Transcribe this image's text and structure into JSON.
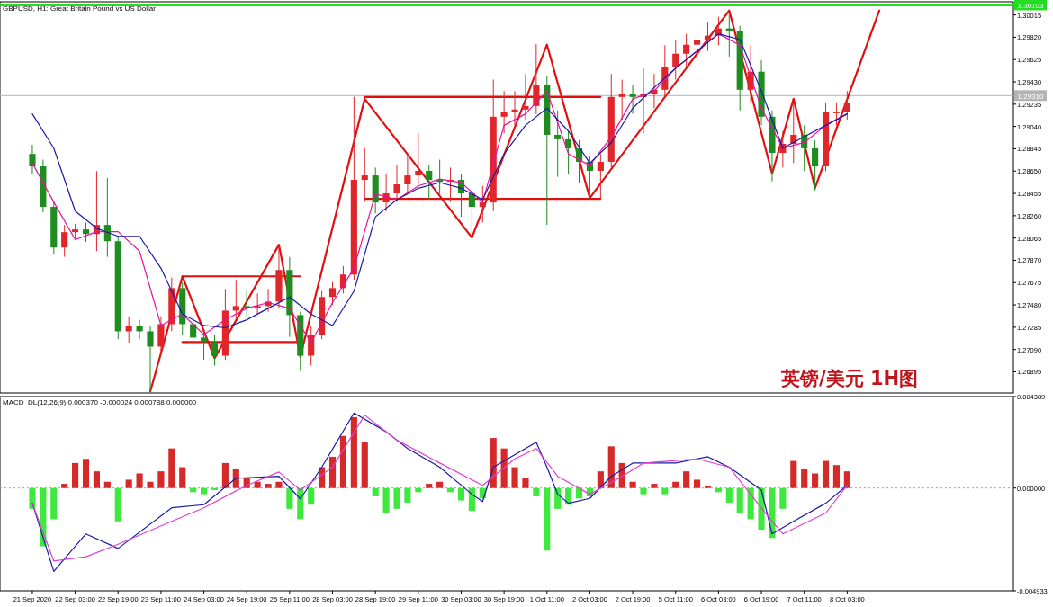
{
  "chart_data": [
    {
      "type": "candlestick",
      "title": "英镑/美元 1H图",
      "subtitle": "GBPUSD, H1:  Great Britain Pound vs US Dollar",
      "tick_labels": "y",
      "categories": [
        null,
        null,
        null,
        null,
        null,
        null,
        null,
        null,
        null,
        null,
        null,
        null,
        null,
        null,
        null,
        null,
        null,
        null,
        null,
        null,
        null,
        null,
        null,
        null,
        null,
        null,
        null,
        null,
        null,
        null,
        null,
        null,
        null,
        null,
        null,
        null,
        null,
        null,
        null,
        null,
        null,
        null,
        null,
        null,
        null,
        null,
        null,
        null,
        null,
        null,
        null,
        null,
        null,
        null,
        null,
        null,
        null,
        null,
        null,
        null,
        null,
        null,
        null,
        null,
        null,
        null,
        null,
        null,
        null,
        null,
        null,
        null,
        null,
        null,
        null,
        null,
        null,
        null,
        null,
        null,
        null,
        null,
        null,
        null,
        null,
        null,
        null,
        null,
        null,
        null,
        null,
        null
      ],
      "ylim": [
        1.2671,
        1.3013
      ],
      "yticks": [
        {
          "value": 1.30015,
          "label": "1.30015"
        },
        {
          "value": 1.2982,
          "label": "1.29820"
        },
        {
          "value": 1.29625,
          "label": "1.29625"
        },
        {
          "value": 1.2943,
          "label": "1.29430"
        },
        {
          "value": 1.29235,
          "label": "1.29235"
        },
        {
          "value": 1.2904,
          "label": "1.29040"
        },
        {
          "value": 1.28845,
          "label": "1.28845"
        },
        {
          "value": 1.2865,
          "label": "1.28650"
        },
        {
          "value": 1.28455,
          "label": "1.28455"
        },
        {
          "value": 1.2826,
          "label": "1.28260"
        },
        {
          "value": 1.28065,
          "label": "1.28065"
        },
        {
          "value": 1.2787,
          "label": "1.27870"
        },
        {
          "value": 1.27675,
          "label": "1.27675"
        },
        {
          "value": 1.2748,
          "label": "1.27480"
        },
        {
          "value": 1.27285,
          "label": "1.27285"
        },
        {
          "value": 1.2709,
          "label": "1.27090"
        },
        {
          "value": 1.26895,
          "label": "1.26895"
        }
      ],
      "ref_lines": [
        {
          "axis": "y",
          "value": 1.30103,
          "label": "1.30103",
          "color": "#22dd22"
        },
        {
          "axis": "y",
          "value": 1.2931,
          "label": "1.29310",
          "color": "#b4b4b4"
        }
      ],
      "ohlc": [
        [
          1.288,
          1.2888,
          1.2862,
          1.28691
        ],
        [
          1.28691,
          1.2875,
          1.2829,
          1.28337
        ],
        [
          1.28337,
          1.2838,
          1.2792,
          1.27982
        ],
        [
          1.27982,
          1.2818,
          1.279,
          1.28116
        ],
        [
          1.28116,
          1.2819,
          1.2806,
          1.2814
        ],
        [
          1.2814,
          1.282,
          1.2803,
          1.281
        ],
        [
          1.281,
          1.2865,
          1.2795,
          1.28179
        ],
        [
          1.28179,
          1.2859,
          1.279,
          1.28037
        ],
        [
          1.28037,
          1.2808,
          1.2718,
          1.27249
        ],
        [
          1.27249,
          1.2738,
          1.2715,
          1.27296
        ],
        [
          1.27296,
          1.2735,
          1.2718,
          1.27249
        ],
        [
          1.27249,
          1.273,
          1.2672,
          1.27115
        ],
        [
          1.27115,
          1.2738,
          1.2705,
          1.27312
        ],
        [
          1.27312,
          1.2772,
          1.2725,
          1.27627
        ],
        [
          1.27627,
          1.2768,
          1.2722,
          1.27312
        ],
        [
          1.27312,
          1.2738,
          1.2712,
          1.27194
        ],
        [
          1.27194,
          1.2725,
          1.27,
          1.27155
        ],
        [
          1.27155,
          1.2722,
          1.2695,
          1.27036
        ],
        [
          1.27036,
          1.2762,
          1.27,
          1.2743
        ],
        [
          1.2743,
          1.277,
          1.2735,
          1.2747
        ],
        [
          1.2747,
          1.2762,
          1.2738,
          1.27454
        ],
        [
          1.27454,
          1.2758,
          1.274,
          1.2747
        ],
        [
          1.2747,
          1.2762,
          1.2742,
          1.27509
        ],
        [
          1.27509,
          1.28,
          1.2745,
          1.27785
        ],
        [
          1.27785,
          1.279,
          1.272,
          1.27391
        ],
        [
          1.27391,
          1.2742,
          1.269,
          1.27036
        ],
        [
          1.27036,
          1.273,
          1.2695,
          1.27218
        ],
        [
          1.27218,
          1.276,
          1.2718,
          1.27549
        ],
        [
          1.27549,
          1.2768,
          1.2748,
          1.27627
        ],
        [
          1.27627,
          1.2782,
          1.2758,
          1.27746
        ],
        [
          1.27746,
          1.293,
          1.277,
          1.28573
        ],
        [
          1.28573,
          1.2885,
          1.2838,
          1.28612
        ],
        [
          1.28612,
          1.2868,
          1.2828,
          1.28376
        ],
        [
          1.28376,
          1.2862,
          1.283,
          1.28455
        ],
        [
          1.28455,
          1.287,
          1.2838,
          1.28534
        ],
        [
          1.28534,
          1.288,
          1.2845,
          1.28612
        ],
        [
          1.28612,
          1.2898,
          1.2852,
          1.28652
        ],
        [
          1.28652,
          1.287,
          1.284,
          1.28573
        ],
        [
          1.28573,
          1.2875,
          1.2845,
          1.28557
        ],
        [
          1.28557,
          1.2868,
          1.2838,
          1.28573
        ],
        [
          1.28573,
          1.2862,
          1.2825,
          1.28455
        ],
        [
          1.28455,
          1.285,
          1.2808,
          1.28337
        ],
        [
          1.28337,
          1.2852,
          1.282,
          1.28376
        ],
        [
          1.28376,
          1.2945,
          1.283,
          1.29125
        ],
        [
          1.29125,
          1.2935,
          1.2898,
          1.29164
        ],
        [
          1.29164,
          1.2935,
          1.2905,
          1.29188
        ],
        [
          1.29188,
          1.295,
          1.291,
          1.29219
        ],
        [
          1.29219,
          1.2976,
          1.2915,
          1.294
        ],
        [
          1.294,
          1.2948,
          1.2818,
          1.28967
        ],
        [
          1.28967,
          1.2918,
          1.286,
          1.28928
        ],
        [
          1.28928,
          1.29,
          1.2862,
          1.28849
        ],
        [
          1.28849,
          1.2892,
          1.2855,
          1.28731
        ],
        [
          1.28731,
          1.2878,
          1.2842,
          1.28652
        ],
        [
          1.28652,
          1.288,
          1.284,
          1.28731
        ],
        [
          1.28731,
          1.295,
          1.2868,
          1.29298
        ],
        [
          1.29298,
          1.2945,
          1.291,
          1.29322
        ],
        [
          1.29322,
          1.294,
          1.2915,
          1.29298
        ],
        [
          1.29298,
          1.2955,
          1.2898,
          1.29322
        ],
        [
          1.29322,
          1.295,
          1.292,
          1.29361
        ],
        [
          1.29361,
          1.2975,
          1.293,
          1.29558
        ],
        [
          1.29558,
          1.298,
          1.2945,
          1.29676
        ],
        [
          1.29676,
          1.2985,
          1.2955,
          1.29755
        ],
        [
          1.29755,
          1.299,
          1.2962,
          1.29794
        ],
        [
          1.29794,
          1.2995,
          1.297,
          1.29834
        ],
        [
          1.29834,
          1.3,
          1.2975,
          1.29897
        ],
        [
          1.29897,
          1.3005,
          1.2965,
          1.29873
        ],
        [
          1.29873,
          1.2992,
          1.2918,
          1.29361
        ],
        [
          1.29361,
          1.2975,
          1.2925,
          1.29519
        ],
        [
          1.29519,
          1.2962,
          1.2905,
          1.29125
        ],
        [
          1.29125,
          1.2918,
          1.2856,
          1.28809
        ],
        [
          1.28809,
          1.29,
          1.2868,
          1.28888
        ],
        [
          1.28888,
          1.2925,
          1.2872,
          1.28967
        ],
        [
          1.28967,
          1.2905,
          1.2865,
          1.28849
        ],
        [
          1.28849,
          1.2892,
          1.2848,
          1.28691
        ],
        [
          1.28691,
          1.2925,
          1.2865,
          1.29164
        ],
        [
          1.29164,
          1.2925,
          1.2905,
          1.29164
        ],
        [
          1.29164,
          1.2935,
          1.291,
          1.29243
        ],
        null,
        null,
        null,
        null,
        null,
        null,
        null,
        null,
        null,
        null,
        null,
        null,
        null,
        null,
        null
      ],
      "colors": [
        "#1e8c1e",
        "#1e8c1e",
        "#1e8c1e",
        "#e0262a",
        "#e0262a",
        "#1e8c1e",
        "#e0262a",
        "#1e8c1e",
        "#1e8c1e",
        "#e0262a",
        "#1e8c1e",
        "#1e8c1e",
        "#e0262a",
        "#e0262a",
        "#1e8c1e",
        "#1e8c1e",
        "#1e8c1e",
        "#1e8c1e",
        "#e0262a",
        "#e0262a",
        "#1e8c1e",
        "#e0262a",
        "#e0262a",
        "#e0262a",
        "#1e8c1e",
        "#1e8c1e",
        "#e0262a",
        "#e0262a",
        "#e0262a",
        "#e0262a",
        "#e0262a",
        "#e0262a",
        "#1e8c1e",
        "#e0262a",
        "#e0262a",
        "#e0262a",
        "#e0262a",
        "#1e8c1e",
        "#1e8c1e",
        "#e0262a",
        "#1e8c1e",
        "#1e8c1e",
        "#e0262a",
        "#e0262a",
        "#e0262a",
        "#e0262a",
        "#e0262a",
        "#e0262a",
        "#1e8c1e",
        "#1e8c1e",
        "#1e8c1e",
        "#1e8c1e",
        "#1e8c1e",
        "#e0262a",
        "#e0262a",
        "#e0262a",
        "#1e8c1e",
        "#e0262a",
        "#e0262a",
        "#e0262a",
        "#e0262a",
        "#e0262a",
        "#e0262a",
        "#e0262a",
        "#e0262a",
        "#1e8c1e",
        "#1e8c1e",
        "#e0262a",
        "#1e8c1e",
        "#1e8c1e",
        "#e0262a",
        "#e0262a",
        "#1e8c1e",
        "#1e8c1e",
        "#e0262a",
        "#e0262a",
        "#e0262a",
        null,
        null,
        null,
        null,
        null,
        null,
        null,
        null,
        null,
        null,
        null,
        null,
        null,
        null,
        null
      ],
      "series": [
        {
          "type": "line",
          "color": "#e8119e",
          "values": [
            1.2872,
            null,
            1.2838,
            null,
            1.2805,
            null,
            1.2812,
            null,
            1.2812,
            null,
            1.2795,
            null,
            1.273,
            null,
            1.274,
            null,
            1.2722,
            null,
            1.2735,
            null,
            1.2745,
            null,
            1.275,
            null,
            1.2745,
            null,
            1.2715,
            null,
            1.275,
            null,
            1.278,
            null,
            1.2845,
            null,
            1.284,
            null,
            1.2852,
            null,
            1.2858,
            null,
            1.2855,
            null,
            1.2838,
            null,
            1.2905,
            null,
            1.2915,
            null,
            1.2935,
            null,
            1.288,
            null,
            1.287,
            null,
            1.2895,
            null,
            1.2928,
            null,
            1.2935,
            null,
            1.2955,
            null,
            1.297,
            null,
            1.2985,
            null,
            1.2975,
            null,
            1.292,
            null,
            1.2885,
            null,
            1.289,
            null,
            1.2905,
            null,
            1.2915,
            null,
            null,
            null,
            null,
            null,
            null,
            null,
            null,
            null,
            null,
            null,
            null,
            null,
            null,
            null
          ]
        },
        {
          "type": "line",
          "color": "#1a1aa8",
          "values": [
            1.2915,
            null,
            1.2885,
            null,
            1.283,
            null,
            1.2815,
            null,
            1.2808,
            null,
            1.2808,
            null,
            1.278,
            null,
            1.274,
            null,
            1.273,
            null,
            1.2728,
            null,
            1.2735,
            null,
            1.2745,
            null,
            1.2755,
            null,
            1.274,
            null,
            1.273,
            null,
            1.276,
            null,
            1.2825,
            null,
            1.284,
            null,
            1.285,
            null,
            1.2855,
            null,
            1.285,
            null,
            1.284,
            null,
            1.288,
            null,
            1.2905,
            null,
            1.292,
            null,
            1.29,
            null,
            1.2872,
            null,
            1.289,
            null,
            1.292,
            null,
            1.2938,
            null,
            1.2955,
            null,
            1.297,
            null,
            1.2985,
            null,
            1.298,
            null,
            1.2935,
            null,
            1.2885,
            null,
            1.2895,
            null,
            1.2905,
            null,
            1.2915,
            null,
            null,
            null,
            null,
            null,
            null,
            null,
            null,
            null,
            null,
            null,
            null,
            null,
            null,
            null
          ]
        },
        {
          "type": "line",
          "color": "#e01010",
          "values": [
            null,
            null,
            null,
            null,
            null,
            null,
            null,
            null,
            null,
            null,
            null,
            null,
            null,
            null,
            1.2773,
            1.2773,
            1.2773,
            1.2773,
            1.2773,
            1.2773,
            1.2773,
            1.2773,
            1.2773,
            1.2773,
            1.2773,
            1.2773,
            null,
            null,
            null,
            null,
            null,
            null,
            null,
            null,
            null,
            null,
            null,
            null,
            null,
            null,
            null,
            null,
            null,
            null,
            null,
            null,
            null,
            null,
            null,
            null,
            null,
            null,
            null,
            null,
            null,
            null,
            null,
            null,
            null,
            null,
            null,
            null,
            null,
            null,
            null,
            null,
            null,
            null,
            null,
            null,
            null,
            null,
            null,
            null,
            null,
            null,
            null,
            null,
            null,
            null,
            null,
            null,
            null,
            null,
            null,
            null,
            null,
            null,
            null,
            null,
            null,
            null
          ]
        },
        {
          "type": "line",
          "color": "#e01010",
          "values": [
            null,
            null,
            null,
            null,
            null,
            null,
            null,
            null,
            null,
            null,
            null,
            null,
            null,
            null,
            1.27155,
            1.27155,
            1.27155,
            1.27155,
            1.27155,
            1.27155,
            1.27155,
            1.27155,
            1.27155,
            1.27155,
            1.27155,
            1.27155,
            null,
            null,
            null,
            null,
            null,
            null,
            null,
            null,
            null,
            null,
            null,
            null,
            null,
            null,
            null,
            null,
            null,
            null,
            null,
            null,
            null,
            null,
            null,
            null,
            null,
            null,
            null,
            null,
            null,
            null,
            null,
            null,
            null,
            null,
            null,
            null,
            null,
            null,
            null,
            null,
            null,
            null,
            null,
            null,
            null,
            null,
            null,
            null,
            null,
            null,
            null,
            null,
            null,
            null,
            null,
            null,
            null,
            null,
            null,
            null,
            null,
            null,
            null,
            null,
            null,
            null
          ]
        },
        {
          "type": "line",
          "color": "#e01010",
          "values": [
            null,
            null,
            null,
            null,
            null,
            null,
            null,
            null,
            null,
            null,
            null,
            null,
            null,
            null,
            null,
            null,
            null,
            null,
            null,
            null,
            null,
            null,
            null,
            null,
            null,
            null,
            null,
            null,
            null,
            null,
            null,
            1.29298,
            1.29298,
            1.29298,
            1.29298,
            1.29298,
            1.29298,
            1.29298,
            1.29298,
            1.29298,
            1.29298,
            1.29298,
            1.29298,
            1.29298,
            1.29298,
            1.29298,
            1.29298,
            1.29298,
            1.29298,
            1.29298,
            1.29298,
            1.29298,
            1.29298,
            1.29298,
            null,
            null,
            null,
            null,
            null,
            null,
            null,
            null,
            null,
            null,
            null,
            null,
            null,
            null,
            null,
            null,
            null,
            null,
            null,
            null,
            null,
            null,
            null,
            null,
            null,
            null,
            null,
            null,
            null,
            null,
            null,
            null,
            null,
            null,
            null,
            null,
            null,
            null
          ]
        },
        {
          "type": "line",
          "color": "#e01010",
          "values": [
            null,
            null,
            null,
            null,
            null,
            null,
            null,
            null,
            null,
            null,
            null,
            null,
            null,
            null,
            null,
            null,
            null,
            null,
            null,
            null,
            null,
            null,
            null,
            null,
            null,
            null,
            null,
            null,
            null,
            null,
            null,
            1.28408,
            1.28408,
            1.28408,
            1.28408,
            1.28408,
            1.28408,
            1.28408,
            1.28408,
            1.28408,
            1.28408,
            1.28408,
            1.28408,
            1.28408,
            1.28408,
            1.28408,
            1.28408,
            1.28408,
            1.28408,
            1.28408,
            1.28408,
            1.28408,
            1.28408,
            1.28408,
            null,
            null,
            null,
            null,
            null,
            null,
            null,
            null,
            null,
            null,
            null,
            null,
            null,
            null,
            null,
            null,
            null,
            null,
            null,
            null,
            null,
            null,
            null,
            null,
            null,
            null,
            null,
            null,
            null,
            null,
            null,
            null,
            null,
            null,
            null,
            null,
            null,
            null
          ]
        },
        {
          "type": "line",
          "color": "#e01010",
          "values": [
            null,
            null,
            null,
            null,
            null,
            null,
            null,
            null,
            null,
            null,
            null,
            1.26722,
            null,
            null,
            1.2773,
            null,
            null,
            1.27013,
            null,
            null,
            null,
            null,
            null,
            1.28006,
            null,
            1.27029,
            null,
            null,
            null,
            null,
            null,
            1.29282,
            null,
            null,
            null,
            null,
            null,
            null,
            null,
            null,
            null,
            1.28069,
            null,
            null,
            null,
            null,
            null,
            null,
            1.29755,
            null,
            null,
            null,
            1.28415,
            null,
            null,
            null,
            null,
            null,
            null,
            null,
            null,
            null,
            null,
            null,
            null,
            1.30054,
            null,
            null,
            null,
            1.28628,
            null,
            1.29282,
            null,
            1.28502,
            null,
            null,
            null,
            null,
            null,
            1.30054,
            null,
            null,
            null,
            null,
            null,
            null,
            null,
            null,
            null,
            null,
            null,
            null
          ]
        }
      ]
    },
    {
      "type": "bar",
      "title": "MACD_DL(12,26,9) 0.000370 -0.000024 0.000788 0.000000",
      "categories": [
        "21 Sep 2020",
        null,
        null,
        null,
        "22 Sep 03:00",
        null,
        null,
        null,
        "22 Sep 19:00",
        null,
        null,
        null,
        "23 Sep 11:00",
        null,
        null,
        null,
        "24 Sep 03:00",
        null,
        null,
        null,
        "24 Sep 19:00",
        null,
        null,
        null,
        "25 Sep 11:00",
        null,
        null,
        null,
        "28 Sep 03:00",
        null,
        null,
        null,
        "28 Sep 19:00",
        null,
        null,
        null,
        "29 Sep 11:00",
        null,
        null,
        null,
        "30 Sep 03:00",
        null,
        null,
        null,
        "30 Sep 19:00",
        null,
        null,
        null,
        "1 Oct 11:00",
        null,
        null,
        null,
        "2 Oct 03:00",
        null,
        null,
        null,
        "2 Oct 19:00",
        null,
        null,
        null,
        "5 Oct 11:00",
        null,
        null,
        null,
        "6 Oct 03:00",
        null,
        null,
        null,
        "6 Oct 19:00",
        null,
        null,
        null,
        "7 Oct 11:00",
        null,
        null,
        null,
        "8 Oct 03:00",
        null,
        null,
        null,
        null,
        null,
        null,
        null,
        null,
        null,
        null,
        null,
        null,
        null,
        null,
        null
      ],
      "ylim": [
        -0.004933,
        0.004389
      ],
      "yticks": [
        {
          "value": 0.004389,
          "label": "0.004389"
        },
        {
          "value": 0,
          "label": "0.000000"
        },
        {
          "value": -0.004933,
          "label": "-0.004933"
        }
      ],
      "ref_lines": [
        {
          "axis": "y",
          "value": 0,
          "color": "#a0a0a0",
          "line_style": "dotted"
        }
      ],
      "series": [
        {
          "type": "bar",
          "values": [
            -0.001,
            -0.0028,
            -0.0015,
            0.0002,
            0.0012,
            0.0014,
            0.0008,
            0.0003,
            -0.0016,
            0.0004,
            0.0007,
            0.0003,
            0.0008,
            0.0019,
            0.001,
            -0.0002,
            -0.0003,
            -0.0001,
            0.0012,
            0.0009,
            0.0005,
            0.0003,
            0.0002,
            0.0003,
            -0.001,
            -0.0015,
            -0.0008,
            0.001,
            0.0015,
            0.0025,
            0.0034,
            0.0022,
            -0.0004,
            -0.0012,
            -0.001,
            -0.0007,
            -0.0002,
            0.0002,
            0.0003,
            -0.0002,
            -0.0006,
            -0.0011,
            -0.0005,
            0.0024,
            0.0019,
            0.001,
            0.0005,
            -0.0004,
            -0.003,
            -0.001,
            -0.0008,
            -0.0005,
            -0.0004,
            0.0008,
            0.002,
            0.0012,
            0.0003,
            -0.0003,
            0.0002,
            -0.0003,
            0.0003,
            0.0008,
            0.0004,
            0.0001,
            -0.0002,
            -0.0007,
            -0.0012,
            -0.0015,
            -0.002,
            -0.0024,
            -0.001,
            0.0013,
            0.0009,
            0.0007,
            0.0013,
            0.0011,
            0.0008,
            null,
            null,
            null,
            null,
            null,
            null,
            null,
            null,
            null,
            null,
            null,
            null,
            null,
            null,
            null
          ],
          "colors": [
            "#3ee83e",
            "#3ee83e",
            "#3ee83e",
            "#d42a2a",
            "#d42a2a",
            "#d42a2a",
            "#d42a2a",
            "#d42a2a",
            "#3ee83e",
            "#d42a2a",
            "#d42a2a",
            "#d42a2a",
            "#d42a2a",
            "#d42a2a",
            "#d42a2a",
            "#3ee83e",
            "#3ee83e",
            "#3ee83e",
            "#d42a2a",
            "#d42a2a",
            "#d42a2a",
            "#d42a2a",
            "#d42a2a",
            "#d42a2a",
            "#3ee83e",
            "#3ee83e",
            "#3ee83e",
            "#d42a2a",
            "#d42a2a",
            "#d42a2a",
            "#d42a2a",
            "#d42a2a",
            "#3ee83e",
            "#3ee83e",
            "#3ee83e",
            "#3ee83e",
            "#3ee83e",
            "#d42a2a",
            "#d42a2a",
            "#3ee83e",
            "#3ee83e",
            "#3ee83e",
            "#3ee83e",
            "#d42a2a",
            "#d42a2a",
            "#d42a2a",
            "#d42a2a",
            "#3ee83e",
            "#3ee83e",
            "#3ee83e",
            "#3ee83e",
            "#3ee83e",
            "#3ee83e",
            "#d42a2a",
            "#d42a2a",
            "#d42a2a",
            "#d42a2a",
            "#3ee83e",
            "#d42a2a",
            "#3ee83e",
            "#d42a2a",
            "#d42a2a",
            "#d42a2a",
            "#d42a2a",
            "#3ee83e",
            "#3ee83e",
            "#3ee83e",
            "#3ee83e",
            "#3ee83e",
            "#3ee83e",
            "#3ee83e",
            "#d42a2a",
            "#d42a2a",
            "#d42a2a",
            "#d42a2a",
            "#d42a2a",
            "#d42a2a",
            null,
            null,
            null,
            null,
            null,
            null,
            null,
            null,
            null,
            null,
            null,
            null,
            null,
            null,
            null
          ]
        },
        {
          "type": "line",
          "color": "#1a1aa8",
          "values": [
            -0.00073,
            null,
            -0.004,
            null,
            null,
            -0.0022,
            null,
            null,
            -0.0029,
            null,
            null,
            null,
            null,
            -0.00095,
            null,
            null,
            -0.0008,
            null,
            null,
            0.00047,
            null,
            null,
            null,
            0.00056,
            null,
            -0.00052,
            null,
            0.001,
            null,
            null,
            0.0036,
            null,
            null,
            0.0027,
            null,
            0.0019,
            null,
            null,
            0.001,
            null,
            null,
            -0.0003,
            -0.00065,
            0.001,
            null,
            null,
            null,
            0.0022,
            0.001,
            -0.0003,
            -0.00073,
            null,
            -0.0005,
            null,
            0.00056,
            null,
            0.0012,
            null,
            null,
            null,
            0.0012,
            null,
            null,
            0.0015,
            null,
            0.001,
            null,
            null,
            -0.0001,
            -0.0022,
            null,
            -0.0016,
            null,
            null,
            -0.00073,
            null,
            0.00013,
            null,
            null,
            null,
            null,
            null,
            null,
            null,
            null,
            null,
            null,
            null,
            null,
            null,
            null,
            null
          ]
        },
        {
          "type": "line",
          "color": "#e040d0",
          "values": [
            -0.00073,
            null,
            -0.0035,
            null,
            null,
            -0.0033,
            null,
            null,
            -0.0027,
            null,
            null,
            null,
            null,
            -0.0016,
            null,
            null,
            -0.00095,
            null,
            null,
            null,
            0.00013,
            null,
            null,
            0.00077,
            null,
            -0.0001,
            null,
            null,
            0.001,
            null,
            null,
            0.0035,
            null,
            null,
            0.0023,
            null,
            null,
            null,
            0.0012,
            null,
            null,
            null,
            0.00013,
            null,
            null,
            0.0014,
            null,
            0.0019,
            null,
            0.00056,
            null,
            null,
            -0.0003,
            null,
            null,
            0.00056,
            null,
            0.0012,
            null,
            null,
            null,
            null,
            0.0014,
            null,
            null,
            0.001,
            null,
            null,
            null,
            -0.0016,
            -0.0022,
            null,
            null,
            null,
            -0.0012,
            null,
            0.00013,
            null,
            null,
            null,
            null,
            null,
            null,
            null,
            null,
            null,
            null,
            null,
            null,
            null,
            null,
            null
          ]
        }
      ]
    }
  ]
}
